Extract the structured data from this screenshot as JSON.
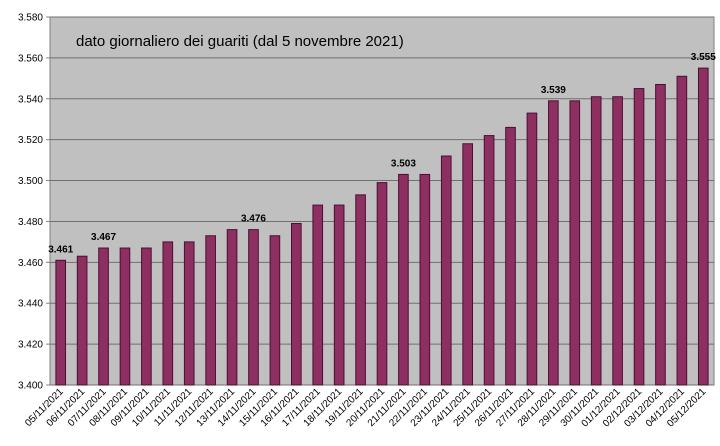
{
  "chart_data": {
    "type": "bar",
    "title": "dato giornaliero dei guariti (dal 5 novembre 2021)",
    "xlabel": "",
    "ylabel": "",
    "ylim": [
      3400,
      3580
    ],
    "ytick_step": 20,
    "ytick_labels": [
      "3.400",
      "3.420",
      "3.440",
      "3.460",
      "3.480",
      "3.500",
      "3.520",
      "3.540",
      "3.560",
      "3.580"
    ],
    "grid": true,
    "categories": [
      "05/11/2021",
      "06/11/2021",
      "07/11/2021",
      "08/11/2021",
      "09/11/2021",
      "10/11/2021",
      "11/11/2021",
      "12/11/2021",
      "13/11/2021",
      "14/11/2021",
      "15/11/2021",
      "16/11/2021",
      "17/11/2021",
      "18/11/2021",
      "19/11/2021",
      "20/11/2021",
      "21/11/2021",
      "22/11/2021",
      "23/11/2021",
      "24/11/2021",
      "25/11/2021",
      "26/11/2021",
      "27/11/2021",
      "28/11/2021",
      "29/11/2021",
      "30/11/2021",
      "01/12/2021",
      "02/12/2021",
      "03/12/2021",
      "04/12/2021",
      "05/12/2021"
    ],
    "values": [
      3461,
      3463,
      3467,
      3467,
      3467,
      3470,
      3470,
      3473,
      3476,
      3476,
      3473,
      3479,
      3488,
      3488,
      3493,
      3499,
      3503,
      3503,
      3512,
      3518,
      3522,
      3526,
      3533,
      3539,
      3539,
      3541,
      3541,
      3545,
      3547,
      3551,
      3555
    ],
    "data_labels": [
      {
        "index": 0,
        "text": "3.461"
      },
      {
        "index": 2,
        "text": "3.467"
      },
      {
        "index": 9,
        "text": "3.476"
      },
      {
        "index": 16,
        "text": "3.503"
      },
      {
        "index": 23,
        "text": "3.539"
      },
      {
        "index": 30,
        "text": "3.555"
      }
    ],
    "colors": {
      "bar": "#8e2f61",
      "bar_edge": "#4a1030",
      "plot_background": "#c0c0c0",
      "gridline": "#707070"
    }
  }
}
